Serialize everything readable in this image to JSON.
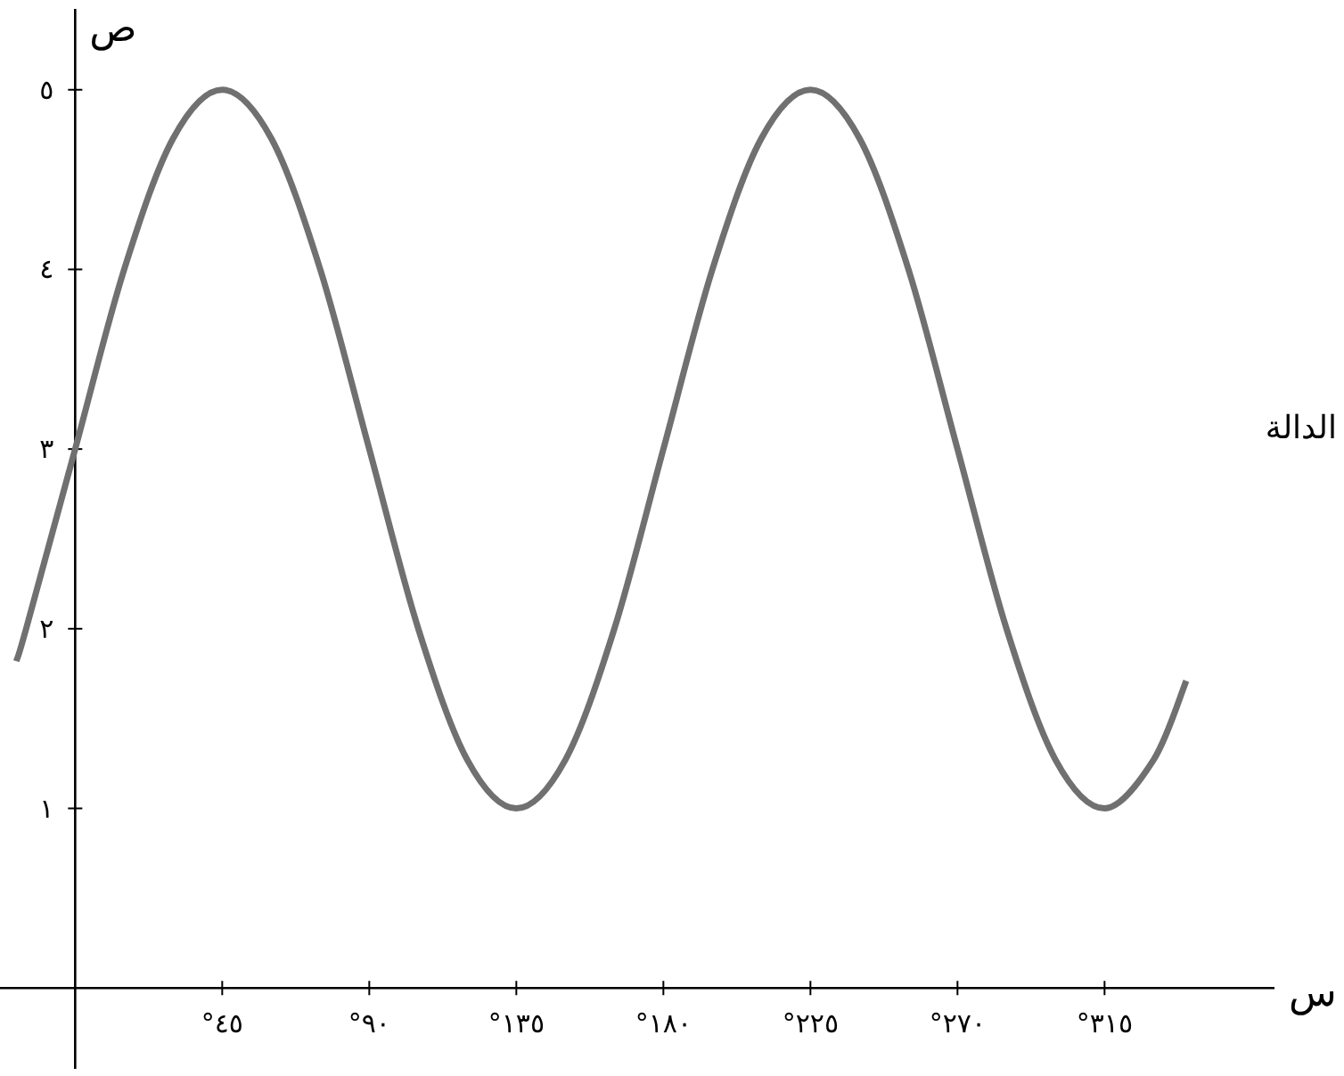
{
  "chart_data": {
    "type": "line",
    "xlabel": "س",
    "ylabel": "ص",
    "annotations": [
      "الدالة"
    ],
    "x": [
      -18,
      -15,
      0,
      15,
      30,
      45,
      60,
      75,
      90,
      105,
      120,
      135,
      150,
      165,
      180,
      195,
      210,
      225,
      240,
      255,
      270,
      285,
      300,
      315,
      330,
      340
    ],
    "series": [
      {
        "color": "#707070",
        "values": [
          1.82,
          2.0,
          3.0,
          4.0,
          4.73,
          5.0,
          4.73,
          4.0,
          3.0,
          2.0,
          1.27,
          1.0,
          1.27,
          2.0,
          3.0,
          4.0,
          4.73,
          5.0,
          4.73,
          4.0,
          3.0,
          2.0,
          1.27,
          1.0,
          1.27,
          1.71
        ]
      }
    ],
    "xlim": [
      -23,
      367
    ],
    "ylim": [
      -0.45,
      5.45
    ],
    "xticks": [
      {
        "value": 45,
        "label": "°٤٥"
      },
      {
        "value": 90,
        "label": "°٩٠"
      },
      {
        "value": 135,
        "label": "°١٣٥"
      },
      {
        "value": 180,
        "label": "°١٨٠"
      },
      {
        "value": 225,
        "label": "°٢٢٥"
      },
      {
        "value": 270,
        "label": "°٢٧٠"
      },
      {
        "value": 315,
        "label": "°٣١٥"
      }
    ],
    "yticks": [
      {
        "value": 1,
        "label": "١"
      },
      {
        "value": 2,
        "label": "٢"
      },
      {
        "value": 3,
        "label": "٣"
      },
      {
        "value": 4,
        "label": "٤"
      },
      {
        "value": 5,
        "label": "٥"
      }
    ],
    "marker": "none",
    "line_style": "solid"
  }
}
